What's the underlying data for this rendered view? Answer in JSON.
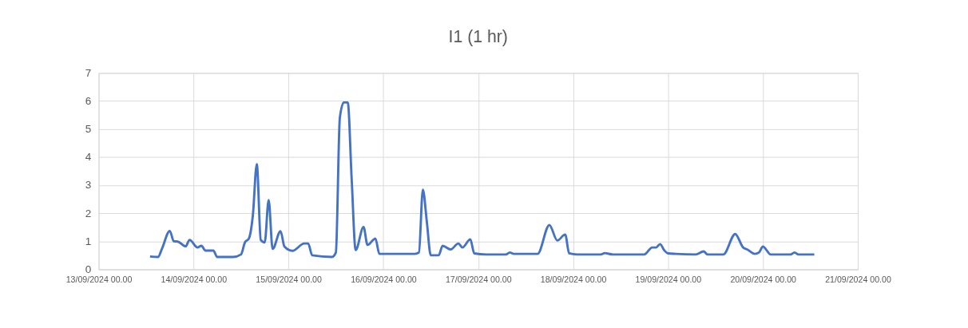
{
  "chart_data": {
    "type": "line",
    "title": "I1 (1 hr)",
    "x": [
      "2024-09-13T13:00",
      "2024-09-13T15:00",
      "2024-09-13T16:00",
      "2024-09-13T18:00",
      "2024-09-13T19:00",
      "2024-09-13T20:00",
      "2024-09-13T22:00",
      "2024-09-13T23:00",
      "2024-09-14T01:00",
      "2024-09-14T02:00",
      "2024-09-14T03:00",
      "2024-09-14T05:00",
      "2024-09-14T06:00",
      "2024-09-14T10:00",
      "2024-09-14T12:00",
      "2024-09-14T13:00",
      "2024-09-14T14:00",
      "2024-09-14T15:00",
      "2024-09-14T16:00",
      "2024-09-14T17:00",
      "2024-09-14T18:00",
      "2024-09-14T19:00",
      "2024-09-14T20:00",
      "2024-09-14T22:00",
      "2024-09-14T23:00",
      "2024-09-15T01:00",
      "2024-09-15T04:00",
      "2024-09-15T05:00",
      "2024-09-15T06:00",
      "2024-09-15T11:00",
      "2024-09-15T12:00",
      "2024-09-15T13:00",
      "2024-09-15T14:00",
      "2024-09-15T15:00",
      "2024-09-15T16:00",
      "2024-09-15T17:00",
      "2024-09-15T19:00",
      "2024-09-15T20:00",
      "2024-09-15T22:00",
      "2024-09-15T23:00",
      "2024-09-16T08:00",
      "2024-09-16T09:00",
      "2024-09-16T10:00",
      "2024-09-16T11:00",
      "2024-09-16T12:00",
      "2024-09-16T14:00",
      "2024-09-16T15:00",
      "2024-09-16T17:00",
      "2024-09-16T19:00",
      "2024-09-16T20:00",
      "2024-09-16T22:00",
      "2024-09-16T23:00",
      "2024-09-17T02:00",
      "2024-09-17T07:00",
      "2024-09-17T08:00",
      "2024-09-17T09:00",
      "2024-09-17T15:00",
      "2024-09-17T18:00",
      "2024-09-17T20:00",
      "2024-09-17T22:00",
      "2024-09-17T23:00",
      "2024-09-18T01:00",
      "2024-09-18T07:00",
      "2024-09-18T08:00",
      "2024-09-18T10:00",
      "2024-09-18T18:00",
      "2024-09-18T20:00",
      "2024-09-18T21:00",
      "2024-09-18T22:00",
      "2024-09-18T23:00",
      "2024-09-19T00:00",
      "2024-09-19T02:00",
      "2024-09-19T07:00",
      "2024-09-19T09:00",
      "2024-09-19T10:00",
      "2024-09-19T14:00",
      "2024-09-19T17:00",
      "2024-09-19T19:00",
      "2024-09-19T20:00",
      "2024-09-19T22:00",
      "2024-09-19T23:00",
      "2024-09-20T00:00",
      "2024-09-20T02:00",
      "2024-09-20T07:00",
      "2024-09-20T08:00",
      "2024-09-20T09:00",
      "2024-09-20T13:00"
    ],
    "series": [
      {
        "color": "#4472c4",
        "values": [
          0.46,
          0.44,
          0.73,
          1.37,
          1.0,
          0.99,
          0.82,
          1.05,
          0.78,
          0.84,
          0.67,
          0.67,
          0.44,
          0.44,
          0.53,
          0.96,
          1.1,
          1.92,
          3.75,
          1.05,
          0.96,
          2.47,
          0.73,
          1.36,
          0.81,
          0.66,
          0.92,
          0.92,
          0.5,
          0.44,
          0.6,
          5.4,
          5.95,
          5.95,
          3.2,
          0.69,
          1.51,
          0.87,
          1.1,
          0.55,
          0.55,
          0.6,
          2.84,
          1.7,
          0.5,
          0.5,
          0.84,
          0.71,
          0.92,
          0.78,
          1.07,
          0.57,
          0.53,
          0.53,
          0.6,
          0.55,
          0.55,
          1.58,
          1.03,
          1.24,
          0.57,
          0.53,
          0.53,
          0.58,
          0.53,
          0.53,
          0.78,
          0.78,
          0.9,
          0.69,
          0.57,
          0.55,
          0.53,
          0.64,
          0.53,
          0.53,
          1.26,
          0.78,
          0.71,
          0.55,
          0.6,
          0.81,
          0.53,
          0.53,
          0.6,
          0.53,
          0.53
        ]
      }
    ],
    "xlim": [
      "2024-09-13T00:00",
      "2024-09-21T00:00"
    ],
    "xticks": [
      {
        "value": "2024-09-13T00:00",
        "label": "13/09/2024 00.00"
      },
      {
        "value": "2024-09-14T00:00",
        "label": "14/09/2024 00.00"
      },
      {
        "value": "2024-09-15T00:00",
        "label": "15/09/2024 00.00"
      },
      {
        "value": "2024-09-16T00:00",
        "label": "16/09/2024 00.00"
      },
      {
        "value": "2024-09-17T00:00",
        "label": "17/09/2024 00.00"
      },
      {
        "value": "2024-09-18T00:00",
        "label": "18/09/2024 00.00"
      },
      {
        "value": "2024-09-19T00:00",
        "label": "19/09/2024 00.00"
      },
      {
        "value": "2024-09-20T00:00",
        "label": "20/09/2024 00.00"
      },
      {
        "value": "2024-09-21T00:00",
        "label": "21/09/2024 00.00"
      }
    ],
    "ylim": [
      0,
      7
    ],
    "yticks": [
      0,
      1,
      2,
      3,
      4,
      5,
      6,
      7
    ],
    "grid": true
  }
}
